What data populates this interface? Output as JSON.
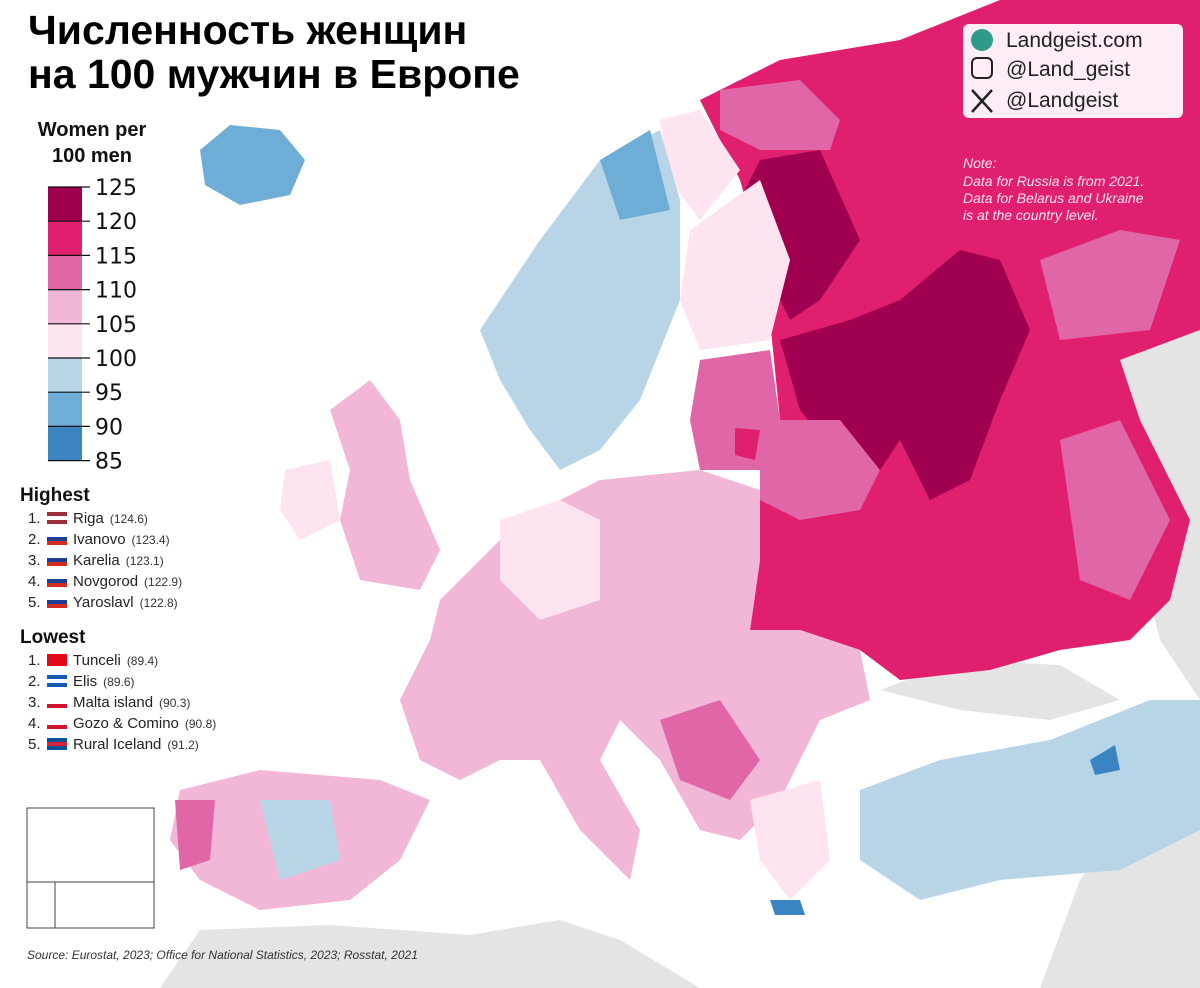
{
  "title": [
    "Численность женщин",
    "на 100 мужчин в Европе"
  ],
  "credits": [
    "Landgeist.com",
    "@Land_geist",
    "@Landgeist"
  ],
  "note": {
    "heading": "Note:",
    "lines": [
      "Data for Russia is from 2021.",
      "Data for Belarus and Ukraine",
      "is at the country level."
    ]
  },
  "legend": {
    "title": [
      "Women per",
      "100 men"
    ],
    "ticks": [
      125,
      120,
      115,
      110,
      105,
      100,
      95,
      90,
      85
    ],
    "colors": [
      "#a0004f",
      "#e0206f",
      "#e066a8",
      "#f2b6d6",
      "#fde4f0",
      "#b7d5e7",
      "#6eaed6",
      "#3a84c2"
    ]
  },
  "highest": {
    "heading": "Highest",
    "items": [
      {
        "rank": "1.",
        "name": "Riga",
        "value": "(124.6)"
      },
      {
        "rank": "2.",
        "name": "Ivanovo",
        "value": "(123.4)"
      },
      {
        "rank": "3.",
        "name": "Karelia",
        "value": "(123.1)"
      },
      {
        "rank": "4.",
        "name": "Novgorod",
        "value": "(122.9)"
      },
      {
        "rank": "5.",
        "name": "Yaroslavl",
        "value": "(122.8)"
      }
    ]
  },
  "lowest": {
    "heading": "Lowest",
    "items": [
      {
        "rank": "1.",
        "name": "Tunceli",
        "value": "(89.4)"
      },
      {
        "rank": "2.",
        "name": "Elis",
        "value": "(89.6)"
      },
      {
        "rank": "3.",
        "name": "Malta island",
        "value": "(90.3)"
      },
      {
        "rank": "4.",
        "name": "Gozo & Comino",
        "value": "(90.8)"
      },
      {
        "rank": "5.",
        "name": "Rural Iceland",
        "value": "(91.2)"
      }
    ]
  },
  "source": "Source: Eurostat, 2023; Office for National Statistics, 2023; Rosstat, 2021"
}
